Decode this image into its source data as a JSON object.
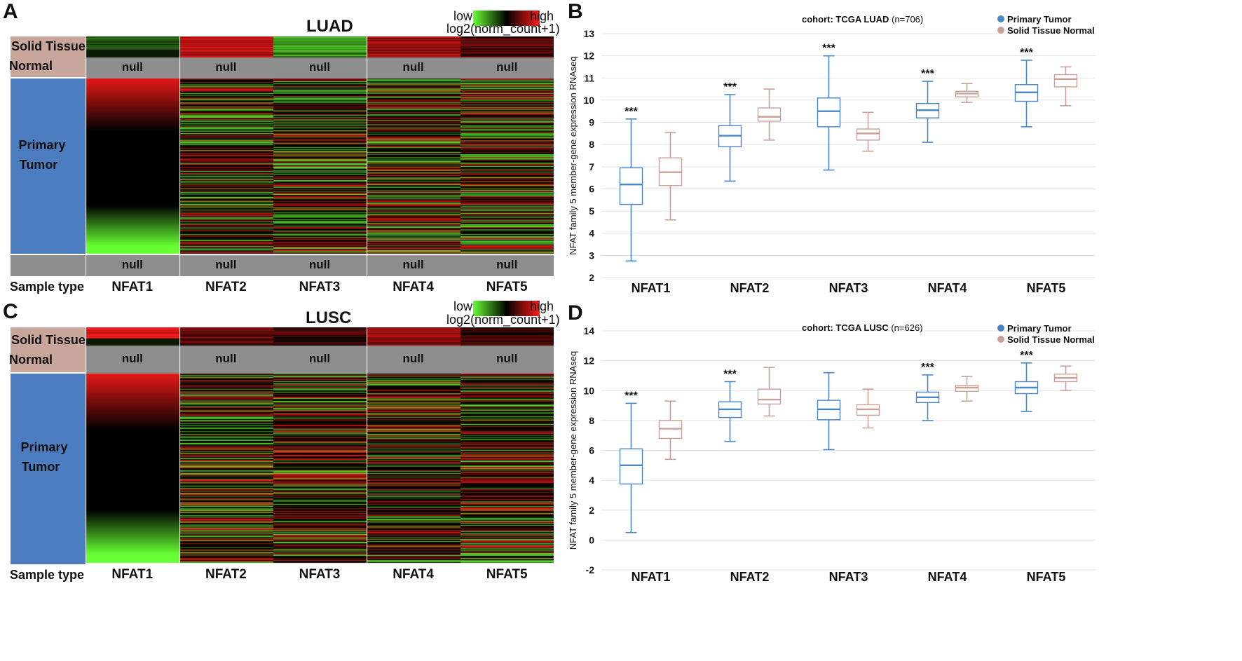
{
  "panels": {
    "A": "A",
    "B": "B",
    "C": "C",
    "D": "D"
  },
  "heatmap_A": {
    "title": "LUAD",
    "legend_low": "low",
    "legend_high": "high",
    "legend_scale": "log2(norm_count+1)",
    "row_normal": "Solid Tissue",
    "row_normal_2": "Normal",
    "row_tumor": "Primary",
    "row_tumor_2": "Tumor",
    "sample_type": "Sample type",
    "null_label": "null",
    "columns": [
      "NFAT1",
      "NFAT2",
      "NFAT3",
      "NFAT4",
      "NFAT5"
    ]
  },
  "heatmap_C": {
    "title": "LUSC",
    "legend_low": "low",
    "legend_high": "high",
    "legend_scale": "log2(norm_count+1)",
    "row_normal": "Solid Tissue",
    "row_normal_2": "Normal",
    "row_tumor": "Primary",
    "row_tumor_2": "Tumor",
    "sample_type": "Sample type",
    "null_label": "null",
    "columns": [
      "NFAT1",
      "NFAT2",
      "NFAT3",
      "NFAT4",
      "NFAT5"
    ]
  },
  "colors": {
    "primary_tumor": "#4a86c6",
    "solid_normal": "#c9a09a",
    "heat_low": "#66ff33",
    "heat_mid": "#000000",
    "heat_high": "#ff1a1a",
    "null_gray": "#8e8e8e"
  },
  "chart_data": [
    {
      "type": "box",
      "cohort": "cohort: TCGA LUAD",
      "n": "(n=706)",
      "ylabel": "NFAT family 5 member-gene expression RNAseq",
      "ylim": [
        2,
        13
      ],
      "yticks": [
        "2",
        "3",
        "4",
        "5",
        "6",
        "7",
        "8",
        "9",
        "10",
        "11",
        "12",
        "13"
      ],
      "categories": [
        "NFAT1",
        "NFAT2",
        "NFAT3",
        "NFAT4",
        "NFAT5"
      ],
      "legend": [
        "Primary Tumor",
        "Solid Tissue Normal"
      ],
      "significance": [
        "***",
        "***",
        "***",
        "***",
        "***"
      ],
      "series": [
        {
          "name": "Primary Tumor",
          "boxes": [
            {
              "min": 2.75,
              "q1": 5.3,
              "median": 6.2,
              "q3": 6.95,
              "max": 9.15
            },
            {
              "min": 6.35,
              "q1": 7.9,
              "median": 8.4,
              "q3": 8.85,
              "max": 10.25
            },
            {
              "min": 6.85,
              "q1": 8.8,
              "median": 9.5,
              "q3": 10.1,
              "max": 12.0
            },
            {
              "min": 8.1,
              "q1": 9.2,
              "median": 9.55,
              "q3": 9.85,
              "max": 10.85
            },
            {
              "min": 8.8,
              "q1": 9.95,
              "median": 10.35,
              "q3": 10.7,
              "max": 11.8
            }
          ]
        },
        {
          "name": "Solid Tissue Normal",
          "boxes": [
            {
              "min": 4.6,
              "q1": 6.15,
              "median": 6.75,
              "q3": 7.4,
              "max": 8.55
            },
            {
              "min": 8.2,
              "q1": 9.05,
              "median": 9.25,
              "q3": 9.65,
              "max": 10.5
            },
            {
              "min": 7.7,
              "q1": 8.2,
              "median": 8.5,
              "q3": 8.7,
              "max": 9.45
            },
            {
              "min": 9.9,
              "q1": 10.15,
              "median": 10.3,
              "q3": 10.4,
              "max": 10.75
            },
            {
              "min": 9.75,
              "q1": 10.6,
              "median": 10.95,
              "q3": 11.15,
              "max": 11.5
            }
          ]
        }
      ]
    },
    {
      "type": "box",
      "cohort": "cohort: TCGA LUSC",
      "n": "(n=626)",
      "ylabel": "NFAT family 5 member-gene expression RNAseq",
      "ylim": [
        -2,
        14
      ],
      "yticks": [
        "-2",
        "0",
        "2",
        "4",
        "6",
        "8",
        "10",
        "12",
        "14"
      ],
      "categories": [
        "NFAT1",
        "NFAT2",
        "NFAT3",
        "NFAT4",
        "NFAT5"
      ],
      "legend": [
        "Primary Tumor",
        "Solid Tissue Normal"
      ],
      "significance": [
        "***",
        "***",
        "",
        "***",
        "***"
      ],
      "series": [
        {
          "name": "Primary Tumor",
          "boxes": [
            {
              "min": 0.5,
              "q1": 3.75,
              "median": 5.0,
              "q3": 6.1,
              "max": 9.15
            },
            {
              "min": 6.6,
              "q1": 8.2,
              "median": 8.75,
              "q3": 9.25,
              "max": 10.6
            },
            {
              "min": 6.05,
              "q1": 8.05,
              "median": 8.75,
              "q3": 9.35,
              "max": 11.2
            },
            {
              "min": 8.0,
              "q1": 9.2,
              "median": 9.55,
              "q3": 9.9,
              "max": 11.05
            },
            {
              "min": 8.6,
              "q1": 9.8,
              "median": 10.2,
              "q3": 10.6,
              "max": 11.85
            }
          ]
        },
        {
          "name": "Solid Tissue Normal",
          "boxes": [
            {
              "min": 5.4,
              "q1": 6.8,
              "median": 7.45,
              "q3": 8.0,
              "max": 9.3
            },
            {
              "min": 8.3,
              "q1": 9.1,
              "median": 9.4,
              "q3": 10.1,
              "max": 11.55
            },
            {
              "min": 7.5,
              "q1": 8.35,
              "median": 8.75,
              "q3": 9.05,
              "max": 10.1
            },
            {
              "min": 9.3,
              "q1": 9.95,
              "median": 10.2,
              "q3": 10.35,
              "max": 10.95
            },
            {
              "min": 10.0,
              "q1": 10.6,
              "median": 10.85,
              "q3": 11.1,
              "max": 11.65
            }
          ]
        }
      ]
    }
  ]
}
